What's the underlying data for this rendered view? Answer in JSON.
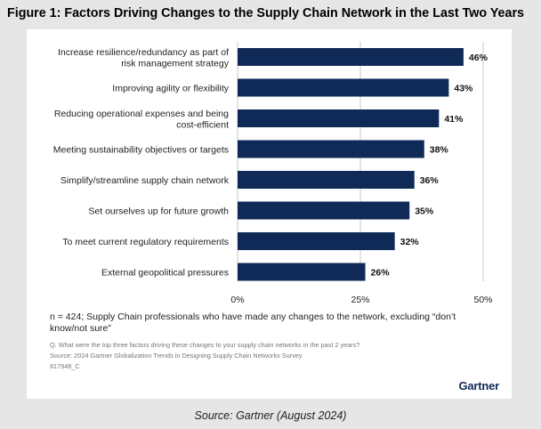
{
  "figure_title": "Figure 1: Factors Driving Changes to the Supply Chain Network in the Last Two Years",
  "chart_data": {
    "type": "bar",
    "orientation": "horizontal",
    "categories": [
      [
        "Increase resilience/redundancy as part of",
        "risk management strategy"
      ],
      [
        "Improving agility or flexibility"
      ],
      [
        "Reducing operational expenses and being",
        "cost-efficient"
      ],
      [
        "Meeting sustainability objectives or targets"
      ],
      [
        "Simplify/streamline supply chain network"
      ],
      [
        "Set ourselves up for future growth"
      ],
      [
        "To meet current regulatory requirements"
      ],
      [
        "External geopolitical pressures"
      ]
    ],
    "values": [
      46,
      43,
      41,
      38,
      36,
      35,
      32,
      26
    ],
    "value_labels": [
      "46%",
      "43%",
      "41%",
      "38%",
      "36%",
      "35%",
      "32%",
      "26%"
    ],
    "xlim": [
      0,
      50
    ],
    "xticks": [
      0,
      25,
      50
    ],
    "xtick_labels": [
      "0%",
      "25%",
      "50%"
    ],
    "bar_color": "#0f2a57",
    "title": "",
    "xlabel": "",
    "ylabel": ""
  },
  "note": "n = 424; Supply Chain professionals who have made any changes to the network, excluding “don’t know/not sure”",
  "question": "Q. What were the top three factors driving these changes to your supply chain networks in the past 2 years?",
  "source_line": "Source: 2024 Gartner Globalization Trends in Designing Supply Chain Networks Survey",
  "doc_id": "817948_C",
  "brand": "Gartner",
  "caption": "Source: Gartner (August 2024)"
}
